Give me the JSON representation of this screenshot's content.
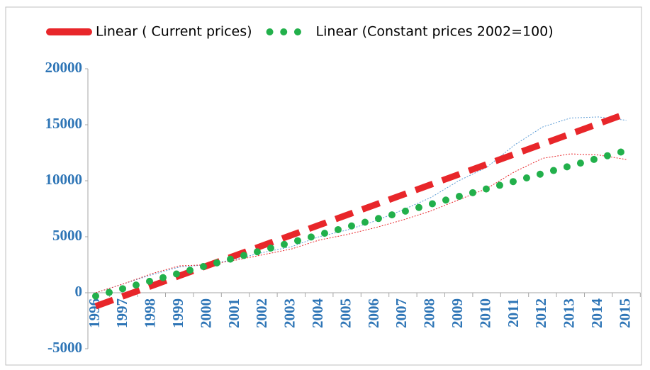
{
  "chart_data": {
    "type": "line",
    "categories": [
      "1996",
      "1997",
      "1998",
      "1999",
      "2000",
      "2001",
      "2002",
      "2003",
      "2004",
      "2005",
      "2006",
      "2007",
      "2008",
      "2009",
      "2010",
      "2011",
      "2012",
      "2013",
      "2014",
      "2015"
    ],
    "series": [
      {
        "color": "#5b9bd5",
        "line_style": "thin-dotted",
        "values": [
          0,
          800,
          1600,
          2300,
          2500,
          3000,
          3600,
          4100,
          5000,
          5600,
          6400,
          7400,
          8500,
          10000,
          11200,
          13200,
          14800,
          15600,
          15700,
          15400
        ]
      },
      {
        "color": "#e8262a",
        "line_style": "thin-dotted",
        "values": [
          0,
          800,
          1700,
          2400,
          2500,
          2900,
          3400,
          3900,
          4700,
          5200,
          5800,
          6500,
          7300,
          8300,
          9300,
          10800,
          12000,
          12400,
          12300,
          11900
        ]
      },
      {
        "name": "Linear ( Current prices)",
        "color": "#e8262a",
        "line_style": "dashed",
        "values": [
          -1200,
          -295,
          610,
          1515,
          2420,
          3325,
          4230,
          5135,
          6040,
          6945,
          7850,
          8755,
          9660,
          10565,
          11470,
          12375,
          13280,
          14185,
          15090,
          15995
        ]
      },
      {
        "name": "Linear (Constant prices 2002=100)",
        "color": "#22b04b",
        "line_style": "dotted",
        "values": [
          -300,
          384,
          1068,
          1752,
          2436,
          3120,
          3804,
          4488,
          5172,
          5856,
          6540,
          7224,
          7908,
          8592,
          9276,
          9960,
          10644,
          11328,
          12012,
          12696
        ]
      }
    ],
    "ylim": [
      -5000,
      20000
    ],
    "yticks": [
      -5000,
      0,
      5000,
      10000,
      15000,
      20000
    ]
  }
}
